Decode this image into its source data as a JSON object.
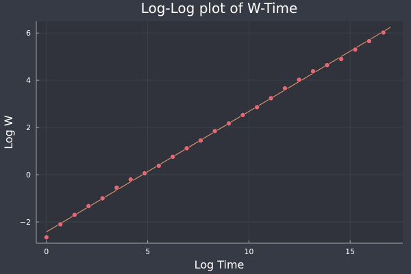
{
  "chart_data": {
    "type": "scatter",
    "title": "Log-Log plot of W-Time",
    "xlabel": "Log Time",
    "ylabel": "Log W",
    "xlim": [
      -0.5,
      17.6
    ],
    "ylim": [
      -2.9,
      6.5
    ],
    "xticks": [
      0,
      5,
      10,
      15
    ],
    "yticks": [
      -2,
      0,
      2,
      4,
      6
    ],
    "ytick_labels": [
      "−2",
      "0",
      "2",
      "4",
      "6"
    ],
    "grid": true,
    "legend": "none",
    "series": [
      {
        "kind": "points",
        "color": "#e26a78",
        "x": [
          0.0,
          0.69,
          1.39,
          2.08,
          2.77,
          3.47,
          4.16,
          4.85,
          5.55,
          6.24,
          6.93,
          7.62,
          8.32,
          9.01,
          9.7,
          10.4,
          11.09,
          11.78,
          12.48,
          13.17,
          13.86,
          14.56,
          15.25,
          15.94,
          16.64
        ],
        "y": [
          -2.65,
          -2.1,
          -1.7,
          -1.33,
          -1.0,
          -0.55,
          -0.2,
          0.06,
          0.38,
          0.76,
          1.12,
          1.45,
          1.85,
          2.17,
          2.53,
          2.86,
          3.24,
          3.66,
          4.02,
          4.38,
          4.64,
          4.9,
          5.3,
          5.66,
          6.02
        ]
      },
      {
        "kind": "line",
        "color": "#d9926a",
        "x": [
          0.0,
          17.0
        ],
        "y": [
          -2.42,
          6.25
        ]
      }
    ]
  },
  "colors": {
    "background": "#363a45",
    "plot_area": "#30333b",
    "axis": "#a5a8ae",
    "text": "#ffffff",
    "grid": "#3d4048"
  }
}
